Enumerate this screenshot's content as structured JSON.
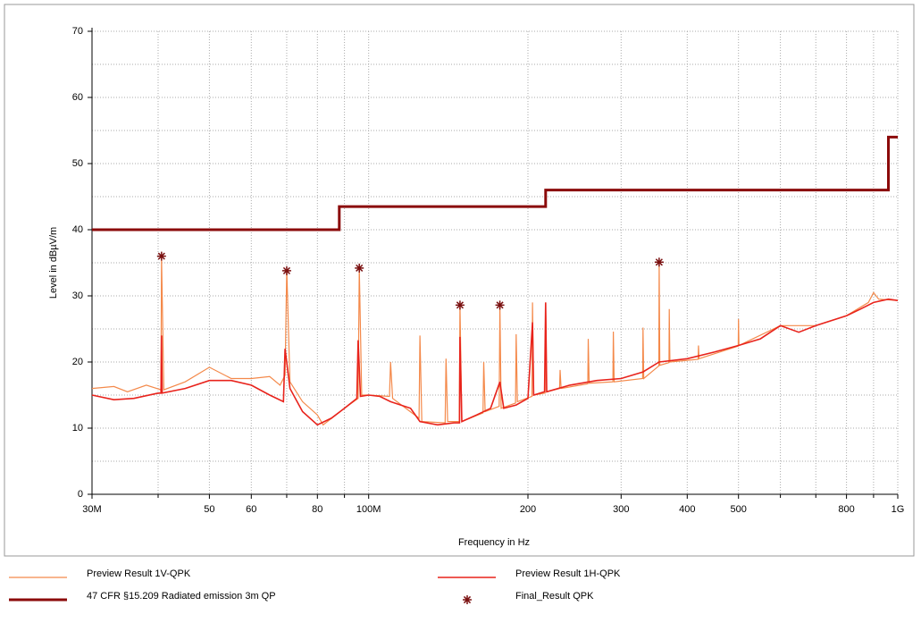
{
  "chart_data": {
    "type": "line",
    "xlabel": "Frequency in Hz",
    "ylabel": "Level in dBµV/m",
    "xscale": "log",
    "grid": true,
    "xlim": [
      30000000,
      1000000000
    ],
    "ylim": [
      0,
      70
    ],
    "yticks": [
      0,
      10,
      20,
      30,
      40,
      50,
      60,
      70
    ],
    "xticks": [
      {
        "value": 30000000,
        "label": "30M"
      },
      {
        "value": 50000000,
        "label": "50"
      },
      {
        "value": 60000000,
        "label": "60"
      },
      {
        "value": 80000000,
        "label": "80"
      },
      {
        "value": 100000000,
        "label": "100M"
      },
      {
        "value": 200000000,
        "label": "200"
      },
      {
        "value": 300000000,
        "label": "300"
      },
      {
        "value": 400000000,
        "label": "400"
      },
      {
        "value": 500000000,
        "label": "500"
      },
      {
        "value": 800000000,
        "label": "800"
      },
      {
        "value": 1000000000,
        "label": "1G"
      }
    ],
    "xminor": [
      40000000,
      70000000,
      90000000,
      600000000,
      700000000,
      900000000
    ],
    "series": [
      {
        "name": "Preview Result 1V-QPK",
        "color": "#f4894a",
        "width": 1.2,
        "x": [
          30000000.0,
          33000000.0,
          35000000.0,
          38000000.0,
          40500000.0,
          40600000.0,
          41000000.0,
          45000000.0,
          50000000.0,
          55000000.0,
          60000000.0,
          65000000.0,
          68000000.0,
          69500000.0,
          70000000.0,
          71000000.0,
          75000000.0,
          80000000.0,
          82000000.0,
          90000000.0,
          95500000.0,
          96000000.0,
          97000000.0,
          100000000.0,
          109500000.0,
          110000000.0,
          111000000.0,
          124500000.0,
          125000000.0,
          126000000.0,
          139500000.0,
          140000000.0,
          141000000.0,
          148300000.0,
          148800000.0,
          150000000.0,
          164500000.0,
          165000000.0,
          166000000.0,
          176500000.0,
          177000000.0,
          178000000.0,
          189500000.0,
          190000000.0,
          191000000.0,
          203500000.0,
          204000000.0,
          205000000.0,
          215500000.0,
          216000000.0,
          217000000.0,
          229500000.0,
          230000000.0,
          231000000.0,
          259500000.0,
          260000000.0,
          261000000.0,
          289500000.0,
          290000000.0,
          291000000.0,
          329500000.0,
          330000000.0,
          331000000.0,
          353500000.0,
          354000000.0,
          355000000.0,
          369500000.0,
          370000000.0,
          371000000.0,
          419500000.0,
          420000000.0,
          421000000.0,
          499500000.0,
          500000000.0,
          501000000.0,
          600000000.0,
          700000000.0,
          800000000.0,
          880000000.0,
          900000000.0,
          920000000.0,
          1000000000.0
        ],
        "values": [
          16,
          16.3,
          15.5,
          16.5,
          15.8,
          36,
          15.8,
          17,
          19.2,
          17.5,
          17.5,
          17.8,
          16.5,
          18,
          34,
          17,
          14,
          12,
          10.5,
          13,
          14.5,
          34.2,
          15,
          15,
          14.8,
          20,
          14.5,
          11.5,
          24,
          11,
          10.8,
          20.5,
          11,
          11,
          28.6,
          11,
          12.3,
          20,
          12.5,
          13.3,
          28.5,
          13,
          13.8,
          24.2,
          14,
          14.8,
          29,
          15,
          15.3,
          29,
          15.5,
          16,
          18.8,
          16,
          16.7,
          23.5,
          16.8,
          17,
          24.6,
          17,
          17.5,
          25.2,
          17.5,
          19.4,
          35.1,
          19.5,
          19.9,
          28,
          20,
          20.4,
          22.5,
          20.5,
          22.4,
          26.5,
          22.5,
          25.5,
          25.5,
          27,
          29,
          30.5,
          29.5,
          29.3
        ]
      },
      {
        "name": "Preview Result 1H-QPK",
        "color": "#e8231c",
        "width": 1.6,
        "x": [
          30000000.0,
          33000000.0,
          36000000.0,
          40000000.0,
          40500000.0,
          40600000.0,
          40700000.0,
          45000000.0,
          50000000.0,
          55000000.0,
          60000000.0,
          65000000.0,
          69000000.0,
          69500000.0,
          71000000.0,
          75000000.0,
          80000000.0,
          85000000.0,
          90000000.0,
          95000000.0,
          95500000.0,
          96500000.0,
          100000000.0,
          105000000.0,
          110000000.0,
          120000000.0,
          125000000.0,
          135000000.0,
          145000000.0,
          148500000.0,
          148800000.0,
          150000000.0,
          160000000.0,
          170000000.0,
          177000000.0,
          180000000.0,
          190000000.0,
          200000000.0,
          204000000.0,
          205000000.0,
          215000000.0,
          216000000.0,
          217000000.0,
          240000000.0,
          270000000.0,
          300000000.0,
          330000000.0,
          354000000.0,
          400000000.0,
          450000000.0,
          500000000.0,
          550000000.0,
          600000000.0,
          650000000.0,
          700000000.0,
          800000000.0,
          850000000.0,
          900000000.0,
          960000000.0,
          1000000000.0
        ],
        "values": [
          15,
          14.3,
          14.5,
          15.3,
          15.3,
          24,
          15.3,
          16,
          17.2,
          17.2,
          16.5,
          15,
          14,
          22,
          16,
          12.5,
          10.5,
          11.5,
          13,
          14.5,
          23.3,
          14.8,
          15,
          14.8,
          14,
          13,
          11,
          10.5,
          10.8,
          10.8,
          23.8,
          11,
          12,
          13,
          17,
          13,
          13.5,
          14.5,
          26,
          15,
          15.5,
          29,
          15.5,
          16.5,
          17.2,
          17.5,
          18.5,
          20,
          20.5,
          21.5,
          22.5,
          23.5,
          25.5,
          24.5,
          25.5,
          27,
          28,
          29,
          29.5,
          29.3
        ]
      },
      {
        "name": "47 CFR §15.209 Radiated emission 3m QP",
        "color": "#8b0a0a",
        "width": 3,
        "x": [
          30000000.0,
          88000000.0,
          88000000.0,
          216000000.0,
          216000000.0,
          960000000.0,
          960000000.0,
          1000000000.0
        ],
        "values": [
          40,
          40,
          43.5,
          43.5,
          46,
          46,
          54,
          54
        ]
      },
      {
        "name": "Final_Result QPK",
        "color": "#7a1010",
        "marker": "asterisk",
        "x": [
          40600000.0,
          70000000.0,
          96000000.0,
          148800000.0,
          177000000.0,
          354000000.0
        ],
        "values": [
          36.0,
          33.8,
          34.2,
          28.6,
          28.6,
          35.1
        ]
      }
    ]
  }
}
